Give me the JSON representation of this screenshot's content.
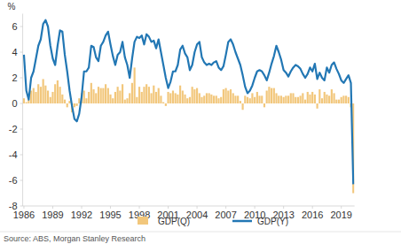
{
  "chart_data": {
    "type": "bar",
    "y_label": "%",
    "source": "Source: ABS, Morgan Stanley Research",
    "categories": [
      "1986",
      null,
      null,
      null,
      null,
      null,
      null,
      null,
      null,
      null,
      null,
      null,
      "1989",
      null,
      null,
      null,
      null,
      null,
      null,
      null,
      null,
      null,
      null,
      null,
      "1992",
      null,
      null,
      null,
      null,
      null,
      null,
      null,
      null,
      null,
      null,
      null,
      "1995",
      null,
      null,
      null,
      null,
      null,
      null,
      null,
      null,
      null,
      null,
      null,
      "1998",
      null,
      null,
      null,
      null,
      null,
      null,
      null,
      null,
      null,
      null,
      null,
      "2001",
      null,
      null,
      null,
      null,
      null,
      null,
      null,
      null,
      null,
      null,
      null,
      "2004",
      null,
      null,
      null,
      null,
      null,
      null,
      null,
      null,
      null,
      null,
      null,
      "2007",
      null,
      null,
      null,
      null,
      null,
      null,
      null,
      null,
      null,
      null,
      null,
      "2010",
      null,
      null,
      null,
      null,
      null,
      null,
      null,
      null,
      null,
      null,
      null,
      "2013",
      null,
      null,
      null,
      null,
      null,
      null,
      null,
      null,
      null,
      null,
      null,
      "2016",
      null,
      null,
      null,
      null,
      null,
      null,
      null,
      null,
      null,
      null,
      null,
      "2019",
      null,
      null,
      null,
      null,
      null
    ],
    "series": [
      {
        "name": "GDP(Q)",
        "type": "bar",
        "color": "#f2c77c",
        "values": [
          0.4,
          0.1,
          0.3,
          1.0,
          1.2,
          0.9,
          1.5,
          1.3,
          1.9,
          1.4,
          1.0,
          0.5,
          0.9,
          1.5,
          1.8,
          1.3,
          0.7,
          0.3,
          -0.3,
          0.2,
          -0.7,
          -0.3,
          -0.2,
          0.4,
          0.8,
          1.0,
          0.4,
          0.9,
          1.6,
          1.1,
          0.8,
          1.3,
          1.2,
          1.2,
          1.5,
          1.2,
          0.7,
          0.4,
          0.9,
          1.3,
          1.0,
          1.5,
          0.3,
          0.4,
          0.8,
          1.6,
          2.8,
          0.5,
          1.3,
          0.9,
          1.3,
          1.5,
          1.3,
          0.8,
          1.4,
          0.9,
          1.2,
          0.6,
          0.1,
          -0.2,
          0.9,
          0.8,
          1.0,
          0.8,
          0.7,
          1.4,
          1.0,
          0.7,
          0.4,
          0.5,
          1.3,
          1.1,
          1.2,
          0.8,
          0.5,
          0.6,
          0.8,
          0.8,
          0.7,
          0.6,
          0.6,
          0.4,
          0.5,
          1.1,
          1.2,
          1.0,
          1.1,
          0.8,
          0.6,
          0.6,
          0.2,
          -0.5,
          0.6,
          0.5,
          0.4,
          0.8,
          0.5,
          0.9,
          0.6,
          0.6,
          -0.3,
          1.0,
          1.3,
          1.2,
          1.2,
          0.8,
          0.6,
          0.6,
          0.5,
          0.6,
          0.6,
          0.8,
          0.8,
          0.5,
          0.5,
          0.6,
          0.8,
          0.3,
          0.9,
          0.7,
          0.9,
          0.7,
          -0.4,
          1.1,
          0.4,
          0.9,
          0.7,
          0.6,
          1.1,
          0.8,
          0.3,
          0.3,
          0.5,
          0.6,
          0.6,
          0.5,
          -0.3,
          -7.0
        ]
      },
      {
        "name": "GDP(Y)",
        "type": "line",
        "color": "#2277b4",
        "values": [
          3.8,
          1.0,
          0.3,
          2.0,
          2.5,
          3.5,
          4.5,
          5.0,
          6.2,
          6.5,
          6.0,
          4.5,
          3.5,
          3.0,
          4.5,
          5.7,
          5.6,
          3.8,
          2.5,
          1.0,
          -0.2,
          -1.2,
          -1.4,
          -0.8,
          0.5,
          2.5,
          2.5,
          2.8,
          4.5,
          4.4,
          3.6,
          3.3,
          4.5,
          4.8,
          5.3,
          5.6,
          4.6,
          3.7,
          3.0,
          3.8,
          4.0,
          4.8,
          3.6,
          3.0,
          2.0,
          3.5,
          4.8,
          5.2,
          5.1,
          5.3,
          4.6,
          5.4,
          5.2,
          4.8,
          4.9,
          4.3,
          5.0,
          4.0,
          3.0,
          2.0,
          1.2,
          1.7,
          2.5,
          2.5,
          3.0,
          4.2,
          4.5,
          3.9,
          3.6,
          2.6,
          3.0,
          4.0,
          4.6,
          4.8,
          3.6,
          3.2,
          3.0,
          3.1,
          3.0,
          3.2,
          3.3,
          2.8,
          2.6,
          2.9,
          3.8,
          4.8,
          5.0,
          4.6,
          4.0,
          3.5,
          3.0,
          2.2,
          1.3,
          0.8,
          1.0,
          1.4,
          2.0,
          2.5,
          2.6,
          2.5,
          2.2,
          1.8,
          2.4,
          3.1,
          3.7,
          4.5,
          4.0,
          3.4,
          2.6,
          2.4,
          2.1,
          2.5,
          2.8,
          3.0,
          2.9,
          2.7,
          2.3,
          2.0,
          2.3,
          2.8,
          2.5,
          3.1,
          1.9,
          2.4,
          2.0,
          1.8,
          2.8,
          2.4,
          3.0,
          3.2,
          2.7,
          2.3,
          1.8,
          1.6,
          1.9,
          2.2,
          1.6,
          -6.3
        ]
      }
    ],
    "ylim": [
      -8,
      7
    ],
    "yticks": [
      -8,
      -6,
      -4,
      -2,
      0,
      2,
      4,
      6
    ],
    "grid": false,
    "legend": "bottom"
  }
}
